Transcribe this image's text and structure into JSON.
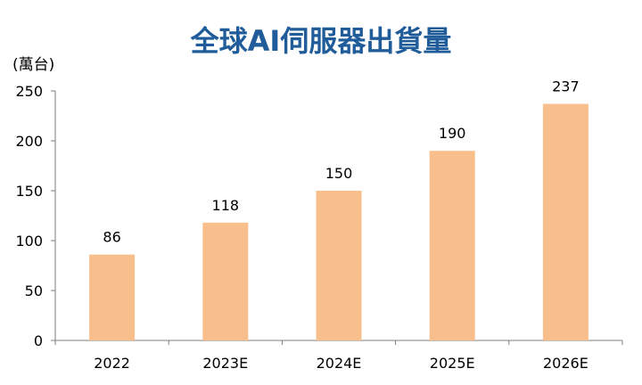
{
  "colors": {
    "title": "#1f5c99",
    "bar": "#f8bf8d",
    "axis": "#7f7f7f",
    "text": "#000000"
  },
  "chart_data": {
    "type": "bar",
    "title": "全球AI伺服器出貨量",
    "ylabel": "(萬台)",
    "xlabel": "",
    "categories": [
      "2022",
      "2023E",
      "2024E",
      "2025E",
      "2026E"
    ],
    "values": [
      86,
      118,
      150,
      190,
      237
    ],
    "ylim": [
      0,
      250
    ],
    "yticks": [
      0,
      50,
      100,
      150,
      200,
      250
    ],
    "grid": false,
    "legend": "none",
    "data_labels": true
  }
}
